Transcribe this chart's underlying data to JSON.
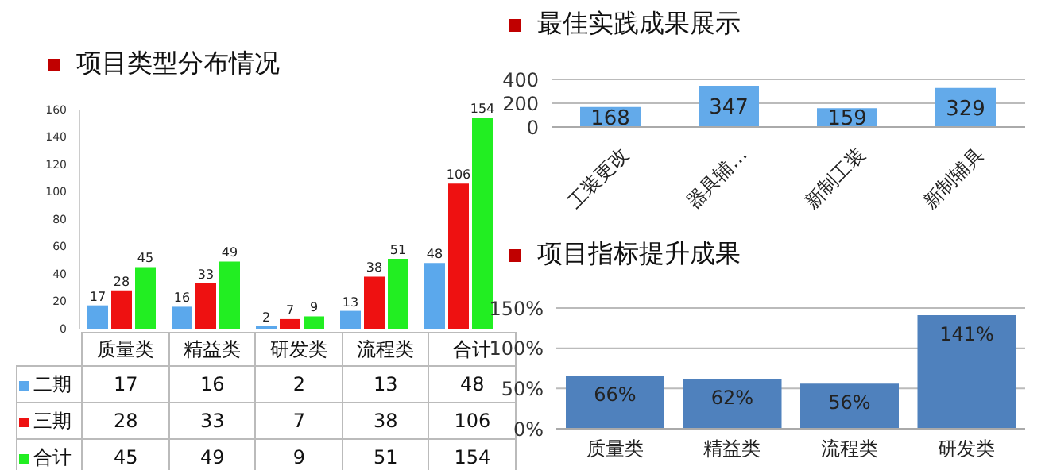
{
  "chart_data": [
    {
      "type": "bar",
      "title": "项目类型分布情况",
      "categories": [
        "质量类",
        "精益类",
        "研发类",
        "流程类",
        "合计"
      ],
      "series": [
        {
          "name": "二期",
          "color": "#5ba8ec",
          "values": [
            17,
            16,
            2,
            13,
            48
          ],
          "value_labels": [
            "17",
            "16",
            "2",
            "13",
            "48"
          ]
        },
        {
          "name": "三期",
          "color": "#ee1111",
          "values": [
            28,
            33,
            7,
            38,
            106
          ],
          "value_labels": [
            "28",
            "33",
            "7",
            "38",
            "106"
          ]
        },
        {
          "name": "合计",
          "color": "#22ee22",
          "values": [
            45,
            49,
            9,
            51,
            154
          ],
          "value_labels": [
            "45",
            "49",
            "9",
            "51",
            "154"
          ]
        }
      ],
      "ylim": [
        0,
        160
      ],
      "yticks": [
        0,
        20,
        40,
        60,
        80,
        100,
        120,
        140,
        160
      ],
      "legend": "bottom",
      "grid": false,
      "annotations": [
        "17",
        "16",
        "2",
        "13",
        "48",
        "28",
        "33",
        "7",
        "38",
        "106",
        "45",
        "49",
        "9",
        "51",
        "154"
      ]
    },
    {
      "type": "bar",
      "title": "最佳实践成果展示",
      "categories": [
        "工装更改",
        "器具辅…",
        "新制工装",
        "新制辅具"
      ],
      "values": [
        168,
        347,
        159,
        329
      ],
      "color": "#63aaea",
      "ylim": [
        0,
        400
      ],
      "yticks": [
        0,
        200,
        400
      ],
      "data_labels": true,
      "grid": "y"
    },
    {
      "type": "bar",
      "title": "项目指标提升成果",
      "categories": [
        "质量类",
        "精益类",
        "流程类",
        "研发类"
      ],
      "values": [
        66,
        62,
        56,
        141
      ],
      "color": "#4f81bd",
      "ylim": [
        0,
        150
      ],
      "yticks": [
        {
          "value": 0,
          "label": "0%"
        },
        {
          "value": 50,
          "label": "50%"
        },
        {
          "value": 100,
          "label": "100%"
        },
        {
          "value": 150,
          "label": "150%"
        }
      ],
      "value_labels": [
        "66%",
        "62%",
        "56%",
        "141%"
      ],
      "grid": "y"
    }
  ]
}
